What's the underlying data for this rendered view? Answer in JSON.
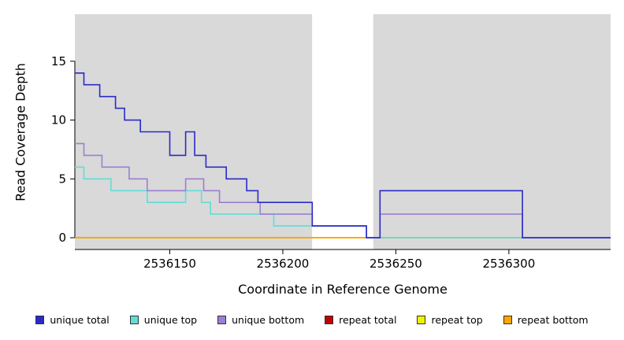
{
  "chart_data": {
    "type": "line",
    "subtype": "step-coverage",
    "title": "",
    "xlabel": "Coordinate in Reference Genome",
    "ylabel": "Read Coverage Depth",
    "xlim": [
      2536108,
      2536345
    ],
    "ylim": [
      -1,
      19
    ],
    "x_ticks": [
      2536150,
      2536200,
      2536250,
      2536300
    ],
    "y_ticks": [
      0,
      5,
      10,
      15
    ],
    "grid": false,
    "plot_background": "#ffffff",
    "background_regions": [
      {
        "name": "unique-left",
        "x0": 2536108,
        "x1": 2536213,
        "color": "#d9d9d9"
      },
      {
        "name": "repeat-gap",
        "x0": 2536213,
        "x1": 2536240,
        "color": "#ffffff"
      },
      {
        "name": "unique-right",
        "x0": 2536240,
        "x1": 2536345,
        "color": "#d9d9d9"
      }
    ],
    "series": [
      {
        "name": "repeat total",
        "color": "#c00000",
        "points": [
          [
            2536108,
            0
          ],
          [
            2536345,
            0
          ]
        ]
      },
      {
        "name": "repeat top",
        "color": "#f2f200",
        "points": [
          [
            2536108,
            0
          ],
          [
            2536345,
            0
          ]
        ]
      },
      {
        "name": "repeat bottom",
        "color": "#ffa500",
        "points": [
          [
            2536108,
            0
          ],
          [
            2536345,
            0
          ]
        ]
      },
      {
        "name": "unique top",
        "color": "#63dcd6",
        "points": [
          [
            2536108,
            6
          ],
          [
            2536112,
            5
          ],
          [
            2536124,
            4
          ],
          [
            2536140,
            3
          ],
          [
            2536157,
            4
          ],
          [
            2536164,
            3
          ],
          [
            2536168,
            2
          ],
          [
            2536196,
            1
          ],
          [
            2536237,
            0
          ],
          [
            2536345,
            0
          ]
        ]
      },
      {
        "name": "unique bottom",
        "color": "#9b7fd4",
        "points": [
          [
            2536108,
            8
          ],
          [
            2536112,
            7
          ],
          [
            2536120,
            6
          ],
          [
            2536132,
            5
          ],
          [
            2536140,
            4
          ],
          [
            2536157,
            5
          ],
          [
            2536165,
            4
          ],
          [
            2536172,
            3
          ],
          [
            2536190,
            2
          ],
          [
            2536213,
            1
          ],
          [
            2536237,
            0
          ],
          [
            2536243,
            2
          ],
          [
            2536306,
            0
          ],
          [
            2536345,
            0
          ]
        ]
      },
      {
        "name": "unique total",
        "color": "#2a2ac8",
        "points": [
          [
            2536108,
            14
          ],
          [
            2536112,
            13
          ],
          [
            2536119,
            12
          ],
          [
            2536126,
            11
          ],
          [
            2536130,
            10
          ],
          [
            2536137,
            9
          ],
          [
            2536150,
            7
          ],
          [
            2536157,
            9
          ],
          [
            2536161,
            7
          ],
          [
            2536166,
            6
          ],
          [
            2536175,
            5
          ],
          [
            2536184,
            4
          ],
          [
            2536189,
            3
          ],
          [
            2536213,
            1
          ],
          [
            2536237,
            0
          ],
          [
            2536243,
            4
          ],
          [
            2536306,
            0
          ],
          [
            2536345,
            0
          ]
        ]
      }
    ],
    "legend": [
      {
        "label": "unique total",
        "color": "#2a2ac8"
      },
      {
        "label": "unique top",
        "color": "#63dcd6"
      },
      {
        "label": "unique bottom",
        "color": "#9b7fd4"
      },
      {
        "label": "repeat total",
        "color": "#c00000"
      },
      {
        "label": "repeat top",
        "color": "#f2f200"
      },
      {
        "label": "repeat bottom",
        "color": "#ffa500"
      }
    ],
    "legend_position": "bottom"
  }
}
